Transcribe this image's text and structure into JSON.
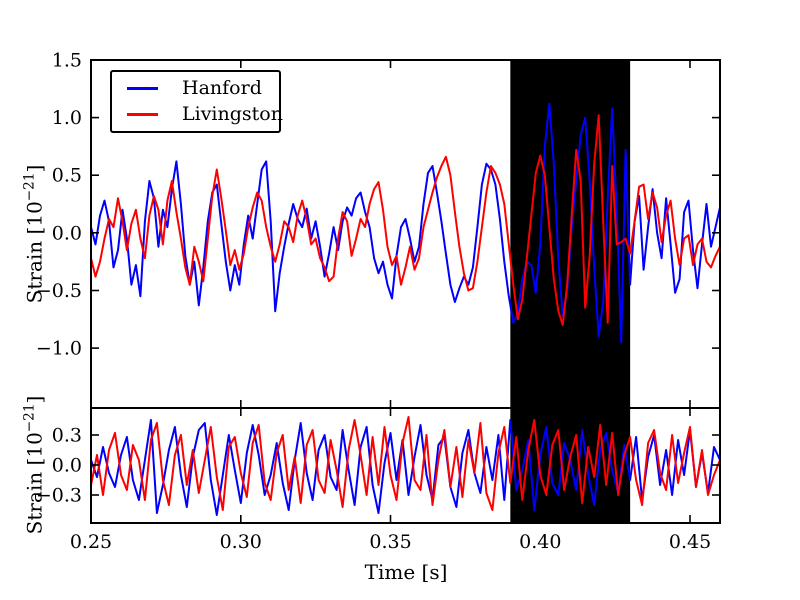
{
  "figure": {
    "background_color": "#ffffff",
    "x_axis_label": "Time [s]",
    "y_axis_label_prefix": "Strain [10",
    "y_axis_label_exponent": "−21",
    "y_axis_label_suffix": "]"
  },
  "legend": {
    "position": "upper left",
    "items": [
      {
        "label": "Hanford",
        "color": "#0000ff"
      },
      {
        "label": "Livingston",
        "color": "#ff0000"
      }
    ]
  },
  "chart_data": [
    {
      "type": "line",
      "subplot": "strain",
      "title": "",
      "xlabel": "",
      "ylabel": "Strain [10^-21]",
      "xlim": [
        0.25,
        0.46
      ],
      "ylim": [
        -1.52,
        1.5
      ],
      "xticks": [
        0.25,
        0.3,
        0.35,
        0.4,
        0.45
      ],
      "xtick_labels": [],
      "yticks": [
        1.5,
        1.0,
        0.5,
        0.0,
        -0.5,
        -1.0
      ],
      "ytick_labels": [
        "1.5",
        "1.0",
        "0.5",
        "0.0",
        "−0.5",
        "−1.0"
      ],
      "grid": false,
      "highlight_span": {
        "x_start": 0.39,
        "x_end": 0.43,
        "color": "#000000"
      },
      "t0": 0.25,
      "dt": 0.0015,
      "series": [
        {
          "name": "Hanford",
          "color": "#0000ff",
          "values": [
            0.05,
            -0.1,
            0.15,
            0.28,
            0.1,
            -0.3,
            -0.15,
            0.2,
            -0.05,
            -0.45,
            -0.28,
            -0.55,
            0.1,
            0.45,
            0.3,
            -0.12,
            0.2,
            0.05,
            0.38,
            0.62,
            0.25,
            -0.2,
            -0.45,
            -0.25,
            -0.63,
            -0.3,
            0.1,
            0.35,
            0.42,
            0.08,
            -0.25,
            -0.5,
            -0.28,
            -0.45,
            -0.1,
            0.15,
            -0.05,
            0.25,
            0.55,
            0.62,
            0.1,
            -0.68,
            -0.35,
            -0.12,
            0.08,
            0.25,
            0.12,
            0.05,
            0.21,
            -0.05,
            0.1,
            -0.12,
            -0.38,
            -0.18,
            0.05,
            -0.15,
            0.1,
            0.22,
            0.15,
            0.3,
            0.35,
            0.18,
            0.05,
            -0.22,
            -0.35,
            -0.25,
            -0.45,
            -0.57,
            -0.2,
            0.05,
            0.12,
            -0.05,
            -0.25,
            -0.12,
            0.25,
            0.52,
            0.58,
            0.35,
            0.1,
            -0.18,
            -0.45,
            -0.6,
            -0.48,
            -0.38,
            -0.45,
            -0.3,
            0.05,
            0.42,
            0.6,
            0.55,
            0.42,
            0.12,
            -0.25,
            -0.55,
            -0.78,
            -0.7,
            -0.4,
            -0.25,
            -0.28,
            -0.52,
            -0.1,
            0.75,
            1.12,
            0.6,
            -0.22,
            -0.72,
            -0.5,
            0.05,
            0.45,
            0.85,
            1.0,
            0.45,
            -0.3,
            -0.9,
            -0.6,
            0.3,
            1.08,
            0.2,
            -0.95,
            0.72,
            -0.45,
            0.1,
            0.32,
            -0.32,
            0.05,
            0.38,
            0.0,
            -0.22,
            0.3,
            -0.1,
            -0.52,
            -0.4,
            0.18,
            0.28,
            -0.15,
            -0.48,
            -0.1,
            0.25,
            -0.12,
            0.05,
            0.22
          ]
        },
        {
          "name": "Livingston",
          "color": "#ff0000",
          "values": [
            -0.22,
            -0.38,
            -0.25,
            -0.05,
            0.12,
            0.05,
            0.3,
            0.1,
            -0.15,
            0.08,
            0.2,
            -0.05,
            -0.22,
            0.15,
            0.32,
            0.2,
            -0.1,
            0.28,
            0.45,
            0.18,
            -0.05,
            -0.3,
            -0.45,
            -0.12,
            -0.25,
            -0.42,
            -0.05,
            0.32,
            0.55,
            0.3,
            0.02,
            -0.28,
            -0.15,
            -0.32,
            -0.18,
            0.05,
            0.22,
            0.35,
            0.28,
            0.05,
            -0.12,
            -0.25,
            -0.1,
            0.1,
            0.05,
            -0.08,
            0.15,
            0.28,
            0.12,
            -0.1,
            -0.05,
            -0.22,
            -0.3,
            -0.42,
            -0.38,
            -0.05,
            0.18,
            0.1,
            -0.2,
            -0.05,
            0.12,
            0.05,
            0.25,
            0.38,
            0.44,
            0.2,
            -0.12,
            -0.28,
            -0.2,
            -0.45,
            -0.3,
            -0.12,
            -0.32,
            -0.22,
            0.05,
            0.2,
            0.35,
            0.48,
            0.58,
            0.66,
            0.5,
            0.18,
            -0.12,
            -0.35,
            -0.5,
            -0.48,
            -0.25,
            0.05,
            0.35,
            0.58,
            0.52,
            0.42,
            0.25,
            -0.1,
            -0.45,
            -0.75,
            -0.58,
            -0.22,
            0.15,
            0.52,
            0.67,
            0.5,
            0.05,
            -0.4,
            -0.68,
            -0.8,
            -0.45,
            0.15,
            0.72,
            0.45,
            -0.65,
            -0.2,
            0.6,
            1.02,
            0.1,
            -0.78,
            0.58,
            -0.1,
            -0.08,
            -0.05,
            -0.18,
            0.1,
            0.4,
            0.42,
            0.12,
            0.35,
            0.22,
            -0.08,
            0.15,
            0.28,
            -0.05,
            -0.28,
            -0.05,
            -0.02,
            -0.28,
            -0.1,
            -0.05,
            -0.25,
            -0.3,
            -0.2,
            -0.12
          ]
        }
      ]
    },
    {
      "type": "line",
      "subplot": "residual",
      "title": "",
      "xlabel": "Time [s]",
      "ylabel": "Strain [10^-21]",
      "xlim": [
        0.25,
        0.46
      ],
      "ylim": [
        -0.58,
        0.57
      ],
      "xticks": [
        0.25,
        0.3,
        0.35,
        0.4,
        0.45
      ],
      "xtick_labels": [
        "0.25",
        "0.30",
        "0.35",
        "0.40",
        "0.45"
      ],
      "yticks": [
        0.3,
        0.0,
        -0.3
      ],
      "ytick_labels": [
        "0.3",
        "0.0",
        "−0.3"
      ],
      "grid": false,
      "highlight_span": {
        "x_start": 0.39,
        "x_end": 0.43,
        "color": "#000000"
      },
      "t0": 0.25,
      "dt": 0.002,
      "series": [
        {
          "name": "Hanford",
          "color": "#0000ff",
          "values": [
            0.05,
            -0.12,
            0.18,
            -0.08,
            -0.22,
            0.1,
            0.28,
            -0.15,
            -0.35,
            0.05,
            0.45,
            -0.48,
            -0.2,
            0.15,
            0.38,
            -0.1,
            -0.42,
            0.08,
            0.35,
            0.42,
            -0.15,
            -0.5,
            -0.1,
            0.3,
            -0.05,
            -0.38,
            0.12,
            0.4,
            0.1,
            -0.3,
            -0.1,
            0.22,
            -0.18,
            -0.45,
            0.05,
            0.42,
            -0.08,
            -0.35,
            0.15,
            0.3,
            -0.12,
            -0.25,
            0.35,
            -0.05,
            -0.4,
            0.18,
            0.38,
            -0.2,
            -0.48,
            0.02,
            0.32,
            -0.15,
            0.25,
            -0.3,
            0.08,
            0.4,
            -0.1,
            -0.35,
            0.2,
            0.28,
            -0.22,
            -0.42,
            0.12,
            0.35,
            -0.08,
            -0.28,
            0.18,
            -0.15,
            0.3,
            -0.35,
            0.45,
            -0.25,
            -0.05,
            0.25,
            -0.45,
            0.1,
            0.38,
            -0.18,
            -0.3,
            0.22,
            0.05,
            -0.25,
            0.35,
            -0.1,
            -0.4,
            0.15,
            0.32,
            -0.05,
            -0.28,
            0.2,
            -0.15,
            0.28,
            -0.35,
            0.08,
            0.3,
            -0.2,
            0.15,
            -0.3,
            0.25,
            -0.1,
            0.35,
            -0.22,
            0.12,
            -0.28,
            0.18,
            0.05
          ]
        },
        {
          "name": "Livingston",
          "color": "#ff0000",
          "values": [
            -0.2,
            0.1,
            -0.3,
            0.15,
            0.32,
            -0.1,
            -0.25,
            0.2,
            0.05,
            -0.35,
            0.25,
            0.42,
            -0.15,
            -0.4,
            0.1,
            0.3,
            -0.2,
            0.15,
            -0.28,
            0.05,
            0.38,
            -0.12,
            -0.45,
            0.18,
            0.28,
            -0.08,
            -0.32,
            0.22,
            0.4,
            -0.18,
            -0.35,
            0.12,
            0.3,
            -0.25,
            0.08,
            -0.38,
            0.2,
            0.35,
            -0.15,
            -0.28,
            0.25,
            -0.05,
            -0.42,
            0.15,
            0.45,
            0.1,
            -0.3,
            0.28,
            -0.2,
            0.38,
            -0.1,
            -0.35,
            0.22,
            0.48,
            -0.15,
            -0.25,
            0.3,
            -0.4,
            0.05,
            0.35,
            -0.22,
            0.18,
            -0.32,
            0.25,
            -0.08,
            0.42,
            -0.28,
            -0.45,
            0.12,
            0.38,
            -0.18,
            0.28,
            -0.35,
            0.15,
            0.45,
            -0.1,
            -0.3,
            0.2,
            0.35,
            -0.25,
            0.08,
            0.3,
            -0.38,
            0.18,
            -0.12,
            0.4,
            -0.2,
            0.32,
            -0.3,
            0.1,
            0.28,
            -0.15,
            -0.4,
            0.22,
            0.35,
            -0.08,
            -0.25,
            0.3,
            -0.18,
            0.12,
            0.38,
            -0.22,
            0.15,
            -0.3,
            -0.1,
            0.05
          ]
        }
      ]
    }
  ]
}
